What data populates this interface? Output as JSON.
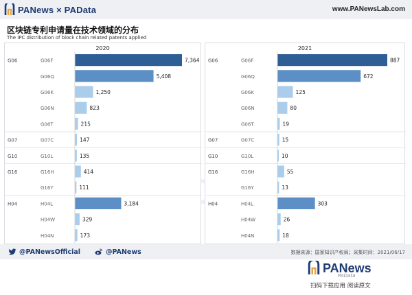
{
  "header": {
    "brand": "PANews × PAData",
    "site": "www.PANewsLab.com"
  },
  "title": "区块链专利申请量在技术领域的分布",
  "subtitle": "The IPC distribution of block chain related patents applied",
  "colors": {
    "dark": "#2e5e95",
    "medium": "#5b8fc6",
    "light": "#a9cdea",
    "grid": "#e3e6ea"
  },
  "chart_data": [
    {
      "type": "bar",
      "orientation": "horizontal",
      "title": "2020",
      "groups": [
        "G06",
        "G07",
        "G10",
        "G16",
        "H04"
      ],
      "rows": [
        {
          "group": "G06",
          "category": "G06F",
          "value": 7364,
          "shade": "dark"
        },
        {
          "group": "G06",
          "category": "G06Q",
          "value": 5408,
          "shade": "medium"
        },
        {
          "group": "G06",
          "category": "G06K",
          "value": 1250,
          "shade": "light"
        },
        {
          "group": "G06",
          "category": "G06N",
          "value": 823,
          "shade": "light"
        },
        {
          "group": "G06",
          "category": "G06T",
          "value": 215,
          "shade": "light"
        },
        {
          "group": "G07",
          "category": "G07C",
          "value": 147,
          "shade": "light"
        },
        {
          "group": "G10",
          "category": "G10L",
          "value": 135,
          "shade": "light"
        },
        {
          "group": "G16",
          "category": "G16H",
          "value": 414,
          "shade": "light"
        },
        {
          "group": "G16",
          "category": "G16Y",
          "value": 111,
          "shade": "light"
        },
        {
          "group": "H04",
          "category": "H04L",
          "value": 3184,
          "shade": "medium"
        },
        {
          "group": "H04",
          "category": "H04W",
          "value": 329,
          "shade": "light"
        },
        {
          "group": "H04",
          "category": "H04N",
          "value": 173,
          "shade": "light"
        }
      ],
      "value_labels": [
        "7,364",
        "5,408",
        "1,250",
        "823",
        "215",
        "147",
        "135",
        "414",
        "111",
        "3,184",
        "329",
        "173"
      ],
      "xlim": [
        0,
        7364
      ]
    },
    {
      "type": "bar",
      "orientation": "horizontal",
      "title": "2021",
      "groups": [
        "G06",
        "G07",
        "G10",
        "G16",
        "H04"
      ],
      "rows": [
        {
          "group": "G06",
          "category": "G06F",
          "value": 887,
          "shade": "dark"
        },
        {
          "group": "G06",
          "category": "G06Q",
          "value": 672,
          "shade": "medium"
        },
        {
          "group": "G06",
          "category": "G06K",
          "value": 125,
          "shade": "light"
        },
        {
          "group": "G06",
          "category": "G06N",
          "value": 80,
          "shade": "light"
        },
        {
          "group": "G06",
          "category": "G06T",
          "value": 19,
          "shade": "light"
        },
        {
          "group": "G07",
          "category": "G07C",
          "value": 15,
          "shade": "light"
        },
        {
          "group": "G10",
          "category": "G10L",
          "value": 10,
          "shade": "light"
        },
        {
          "group": "G16",
          "category": "G16H",
          "value": 55,
          "shade": "light"
        },
        {
          "group": "G16",
          "category": "G16Y",
          "value": 13,
          "shade": "light"
        },
        {
          "group": "H04",
          "category": "H04L",
          "value": 303,
          "shade": "medium"
        },
        {
          "group": "H04",
          "category": "H04W",
          "value": 26,
          "shade": "light"
        },
        {
          "group": "H04",
          "category": "H04N",
          "value": 18,
          "shade": "light"
        }
      ],
      "value_labels": [
        "887",
        "672",
        "125",
        "80",
        "19",
        "15",
        "10",
        "55",
        "13",
        "303",
        "26",
        "18"
      ],
      "xlim": [
        0,
        887
      ]
    }
  ],
  "watermarks": {
    "left": "PANews",
    "center": "PAData"
  },
  "footer": {
    "twitter_icon": "twitter-icon",
    "twitter": "@PANewsOfficial",
    "weibo_icon": "weibo-icon",
    "weibo": "@PANews",
    "source": "数据来源：国家知识产权局；采集时间：2021/06/17"
  },
  "qr": {
    "brand": "PANews",
    "caption": "扫码下载应用  阅读原文",
    "wechat_mark": "PAData"
  }
}
